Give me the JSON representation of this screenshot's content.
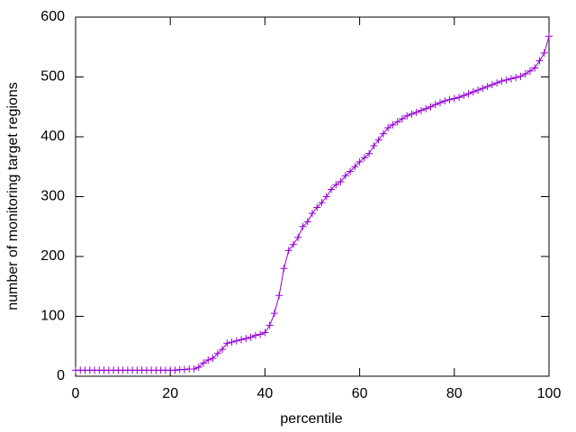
{
  "chart_data": {
    "type": "line",
    "xlabel": "percentile",
    "ylabel": "number of monitoring target regions",
    "x": [
      0,
      1,
      2,
      3,
      4,
      5,
      6,
      7,
      8,
      9,
      10,
      11,
      12,
      13,
      14,
      15,
      16,
      17,
      18,
      19,
      20,
      21,
      22,
      23,
      24,
      25,
      26,
      27,
      28,
      29,
      30,
      31,
      32,
      33,
      34,
      35,
      36,
      37,
      38,
      39,
      40,
      41,
      42,
      43,
      44,
      45,
      46,
      47,
      48,
      49,
      50,
      51,
      52,
      53,
      54,
      55,
      56,
      57,
      58,
      59,
      60,
      61,
      62,
      63,
      64,
      65,
      66,
      67,
      68,
      69,
      70,
      71,
      72,
      73,
      74,
      75,
      76,
      77,
      78,
      79,
      80,
      81,
      82,
      83,
      84,
      85,
      86,
      87,
      88,
      89,
      90,
      91,
      92,
      93,
      94,
      95,
      96,
      97,
      98,
      99,
      100
    ],
    "values": [
      10,
      10,
      10,
      10,
      10,
      10,
      10,
      10,
      10,
      10,
      10,
      10,
      10,
      10,
      10,
      10,
      10,
      10,
      10,
      10,
      10,
      10,
      11,
      11,
      12,
      12,
      15,
      22,
      27,
      30,
      38,
      45,
      55,
      57,
      59,
      61,
      63,
      65,
      68,
      70,
      73,
      85,
      105,
      135,
      180,
      210,
      220,
      232,
      250,
      258,
      272,
      282,
      290,
      300,
      312,
      320,
      325,
      335,
      342,
      350,
      358,
      365,
      372,
      385,
      395,
      405,
      415,
      420,
      425,
      430,
      435,
      438,
      441,
      444,
      447,
      450,
      454,
      457,
      460,
      462,
      464,
      466,
      469,
      472,
      475,
      478,
      481,
      484,
      487,
      490,
      493,
      495,
      497,
      499,
      501,
      505,
      510,
      515,
      527,
      540,
      568
    ],
    "color": "#9400d3",
    "marker": "+",
    "xlim": [
      0,
      100
    ],
    "xticks": [
      0,
      20,
      40,
      60,
      80,
      100
    ],
    "ylim": [
      0,
      600
    ],
    "yticks": [
      0,
      100,
      200,
      300,
      400,
      500,
      600
    ]
  }
}
